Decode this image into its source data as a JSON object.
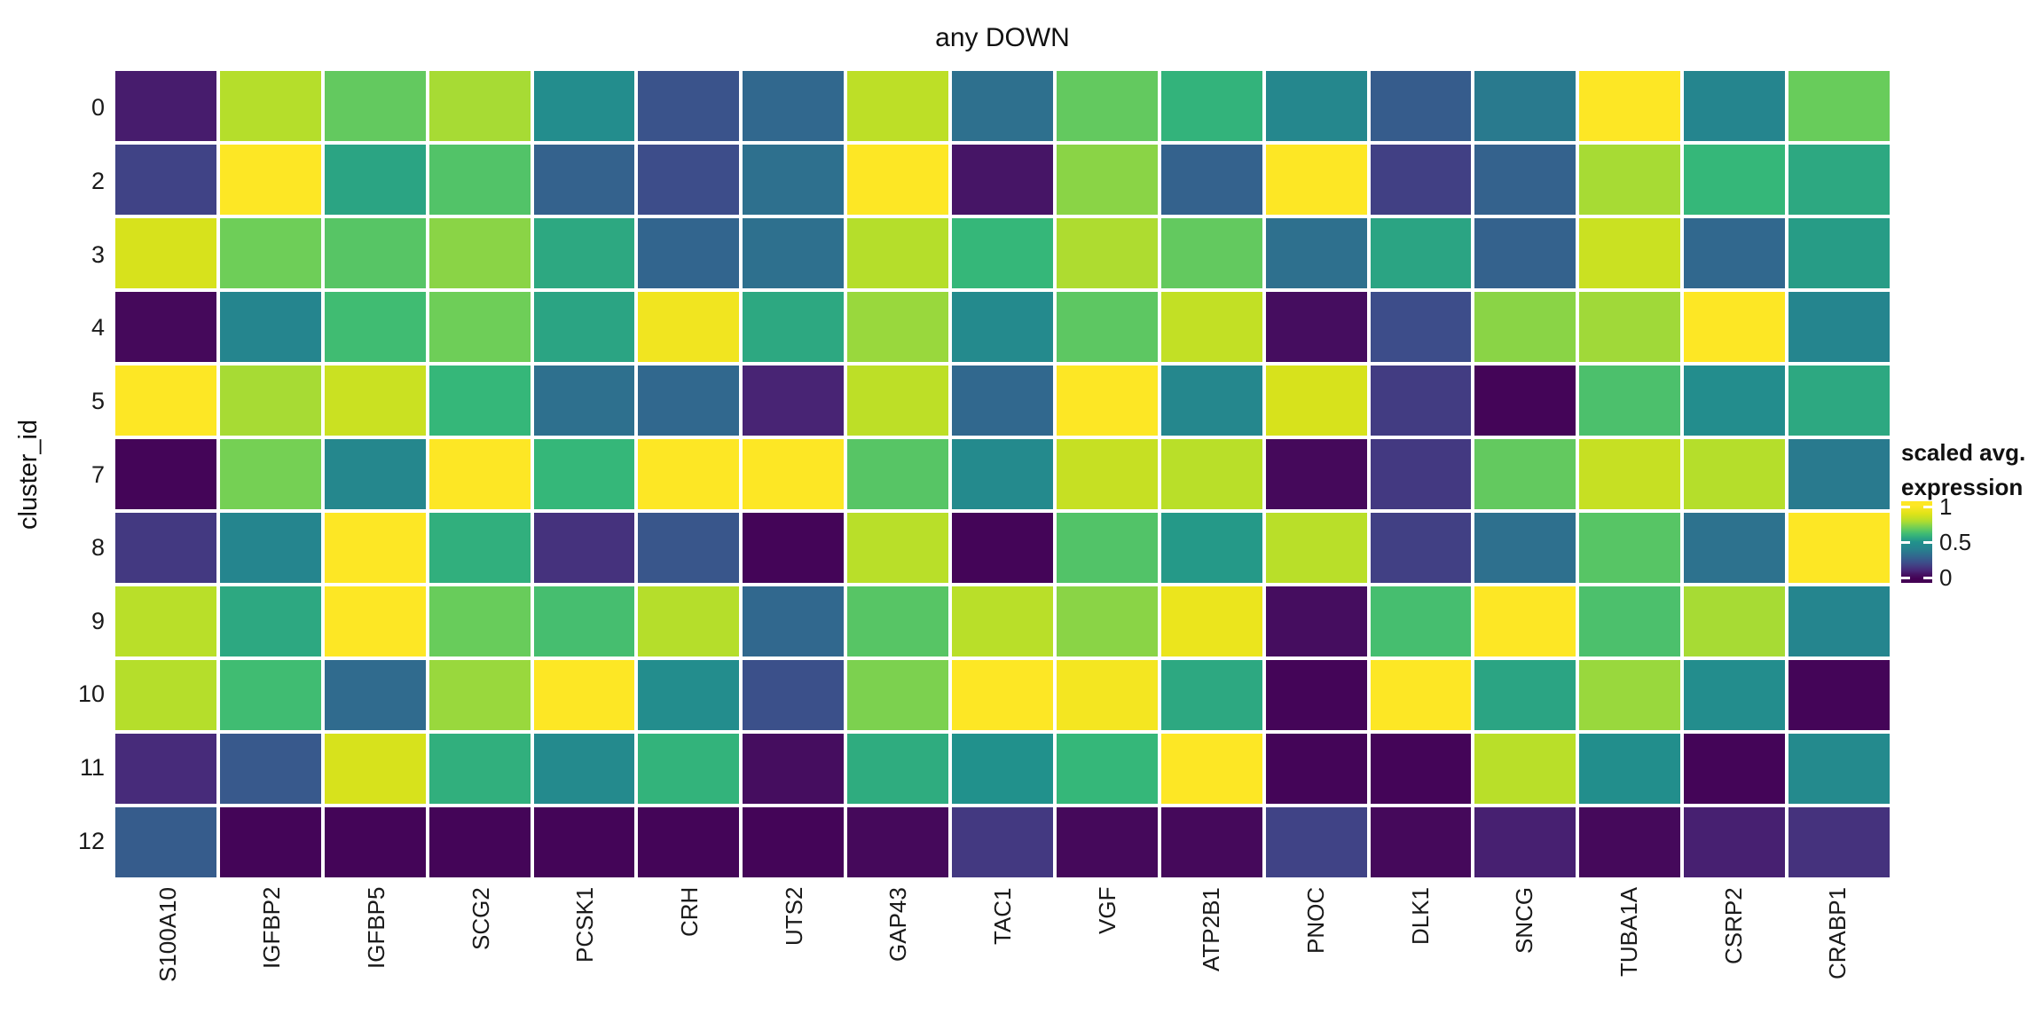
{
  "figure": {
    "title": "any DOWN",
    "background": "#ffffff"
  },
  "chart_data": {
    "type": "heatmap",
    "title": "any DOWN",
    "xlabel": "",
    "ylabel": "cluster_id",
    "columns": [
      "S100A10",
      "IGFBP2",
      "IGFBP5",
      "SCG2",
      "PCSK1",
      "CRH",
      "UTS2",
      "GAP43",
      "TAC1",
      "VGF",
      "ATP2B1",
      "PNOC",
      "DLK1",
      "SNCG",
      "TUBA1A",
      "CSRP2",
      "CRABP1"
    ],
    "rows": [
      "0",
      "2",
      "3",
      "4",
      "5",
      "7",
      "8",
      "9",
      "10",
      "11",
      "12"
    ],
    "values": [
      [
        0.07,
        0.8,
        0.68,
        0.78,
        0.47,
        0.23,
        0.3,
        0.82,
        0.33,
        0.68,
        0.59,
        0.43,
        0.26,
        0.37,
        1.0,
        0.42,
        0.69
      ],
      [
        0.18,
        1.0,
        0.55,
        0.65,
        0.28,
        0.21,
        0.33,
        1.0,
        0.05,
        0.74,
        0.28,
        1.0,
        0.17,
        0.28,
        0.78,
        0.6,
        0.56
      ],
      [
        0.88,
        0.7,
        0.66,
        0.74,
        0.56,
        0.29,
        0.33,
        0.8,
        0.6,
        0.79,
        0.68,
        0.33,
        0.55,
        0.28,
        0.85,
        0.3,
        0.53
      ],
      [
        0.02,
        0.42,
        0.62,
        0.7,
        0.55,
        0.96,
        0.56,
        0.76,
        0.45,
        0.67,
        0.83,
        0.03,
        0.21,
        0.74,
        0.77,
        1.0,
        0.42
      ],
      [
        1.0,
        0.78,
        0.85,
        0.6,
        0.33,
        0.3,
        0.09,
        0.82,
        0.3,
        1.0,
        0.43,
        0.88,
        0.16,
        0.01,
        0.64,
        0.47,
        0.56
      ],
      [
        0.01,
        0.71,
        0.43,
        1.0,
        0.6,
        1.0,
        1.0,
        0.66,
        0.45,
        0.84,
        0.81,
        0.02,
        0.15,
        0.68,
        0.84,
        0.8,
        0.37
      ],
      [
        0.15,
        0.42,
        1.0,
        0.58,
        0.13,
        0.24,
        0.01,
        0.81,
        0.01,
        0.65,
        0.52,
        0.81,
        0.17,
        0.33,
        0.66,
        0.34,
        1.0
      ],
      [
        0.81,
        0.56,
        1.0,
        0.69,
        0.63,
        0.8,
        0.3,
        0.66,
        0.81,
        0.74,
        0.94,
        0.03,
        0.63,
        1.0,
        0.64,
        0.78,
        0.42
      ],
      [
        0.8,
        0.62,
        0.31,
        0.76,
        1.0,
        0.47,
        0.22,
        0.72,
        1.0,
        0.97,
        0.56,
        0.01,
        1.0,
        0.55,
        0.76,
        0.47,
        0.01
      ],
      [
        0.11,
        0.25,
        0.88,
        0.58,
        0.45,
        0.59,
        0.03,
        0.57,
        0.5,
        0.6,
        1.0,
        0.01,
        0.01,
        0.81,
        0.48,
        0.01,
        0.45
      ],
      [
        0.26,
        0.01,
        0.01,
        0.01,
        0.01,
        0.01,
        0.01,
        0.02,
        0.15,
        0.02,
        0.02,
        0.18,
        0.02,
        0.08,
        0.02,
        0.08,
        0.13
      ]
    ],
    "colormap": "viridis",
    "value_range": [
      0,
      1
    ],
    "grid_gap_color": "#ffffff",
    "legend": {
      "position": "right",
      "title_line1": "scaled avg.",
      "title_line2": "expression",
      "ticks": [
        {
          "label": "1",
          "value": 1
        },
        {
          "label": "0.5",
          "value": 0.5
        },
        {
          "label": "0",
          "value": 0
        }
      ]
    },
    "colors": {
      "viridis_min": "#440154",
      "viridis_mid": "#21918c",
      "viridis_max": "#fde725"
    }
  }
}
